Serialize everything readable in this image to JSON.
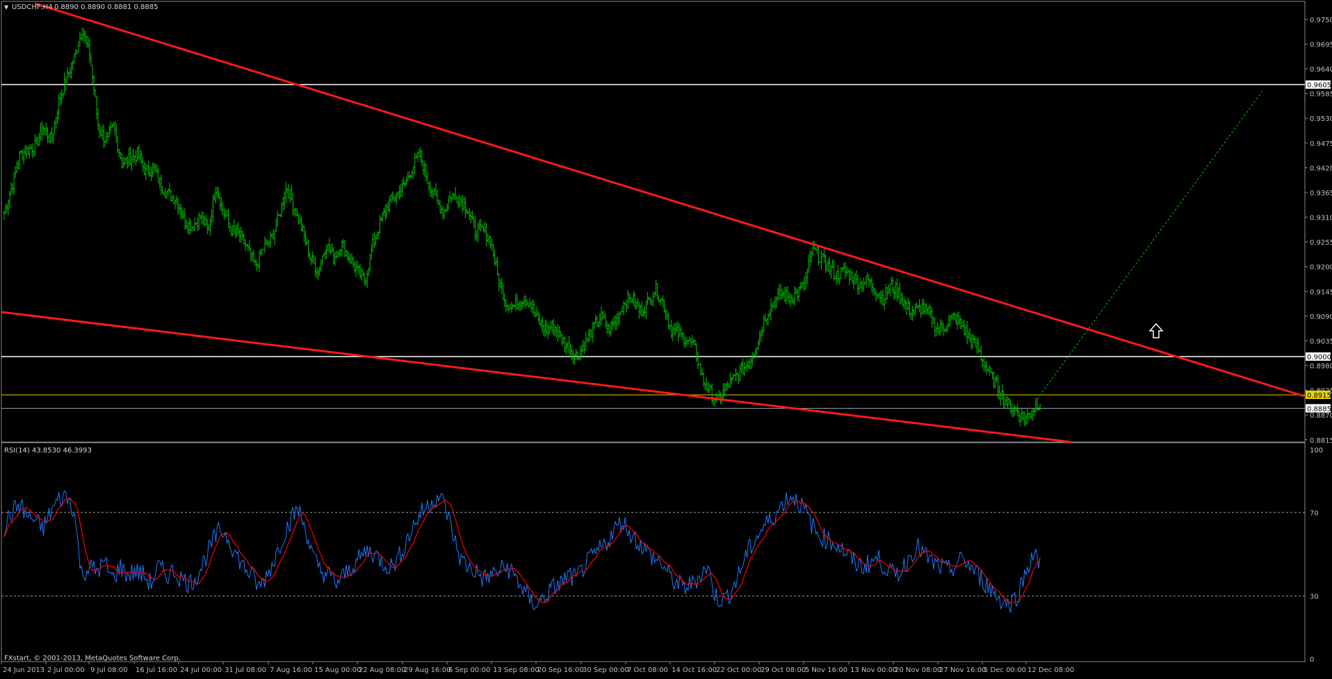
{
  "header": {
    "menu_glyph": "▼",
    "title": "USDCHF,H4",
    "ohlc": "0.8890 0.8890 0.8881 0.8885"
  },
  "rsi_header": "RSI(14) 43.8530 46.3993",
  "copyright": "FXstart, © 2001-2013, MetaQuotes Software Corp.",
  "colors": {
    "background": "#000000",
    "price_bars": "#00c800",
    "trendline": "#ff1a1a",
    "hline": "#ffffff",
    "yellow_level": "#e8d700",
    "bid_line": "#8fa0b0",
    "projection": "#00c800",
    "rsi_line": "#1e7bff",
    "rsi_signal": "#ff0000",
    "axis_text": "#c0c0c0"
  },
  "price_axis": {
    "ticks": [
      "0.9750",
      "0.9695",
      "0.9640",
      "0.9585",
      "0.9530",
      "0.9475",
      "0.9420",
      "0.9365",
      "0.9310",
      "0.9255",
      "0.9200",
      "0.9145",
      "0.9090",
      "0.9035",
      "0.8980",
      "0.8925",
      "0.8870",
      "0.8815"
    ],
    "min": 0.881,
    "max": 0.979
  },
  "time_axis": {
    "labels": [
      "24 Jun 2013",
      "2 Jul 00:00",
      "9 Jul 08:00",
      "16 Jul 16:00",
      "24 Jul 00:00",
      "31 Jul 08:00",
      "7 Aug 16:00",
      "15 Aug 00:00",
      "22 Aug 08:00",
      "29 Aug 16:00",
      "6 Sep 00:00",
      "13 Sep 08:00",
      "20 Sep 16:00",
      "30 Sep 00:00",
      "7 Oct 08:00",
      "14 Oct 16:00",
      "22 Oct 00:00",
      "29 Oct 08:00",
      "5 Nov 16:00",
      "13 Nov 00:00",
      "20 Nov 08:00",
      "27 Nov 16:00",
      "5 Dec 00:00",
      "12 Dec 08:00"
    ]
  },
  "rsi_axis": {
    "ticks": [
      "100",
      "70",
      "30",
      "0"
    ]
  },
  "levels": {
    "upper_label": "0.9605",
    "upper_value": 0.9605,
    "middle_label": "0.9000",
    "middle_value": 0.9,
    "yellow_label": "0.8915",
    "yellow_value": 0.8915,
    "bid_label": "0.8885",
    "bid_value": 0.8885
  },
  "annotations": {
    "up_arrow": "up-arrow-icon"
  },
  "chart_data": [
    {
      "type": "line",
      "series": [
        {
          "values": [
            0.932,
            0.938,
            0.945,
            0.946,
            0.947,
            0.951,
            0.948,
            0.957,
            0.962,
            0.967,
            0.973,
            0.966,
            0.951,
            0.948,
            0.951,
            0.943,
            0.944,
            0.945,
            0.941,
            0.942,
            0.938,
            0.936,
            0.935,
            0.93,
            0.929,
            0.931,
            0.928,
            0.938,
            0.932,
            0.928,
            0.927,
            0.924,
            0.92,
            0.924,
            0.926,
            0.931,
            0.938,
            0.933,
            0.928,
            0.922,
            0.919,
            0.925,
            0.922,
            0.925,
            0.922,
            0.919,
            0.917,
            0.925,
            0.93,
            0.934,
            0.936,
            0.938,
            0.942,
            0.945,
            0.939,
            0.935,
            0.932,
            0.936,
            0.935,
            0.933,
            0.928,
            0.928,
            0.926,
            0.917,
            0.912,
            0.911,
            0.913,
            0.912,
            0.908,
            0.906,
            0.907,
            0.904,
            0.902,
            0.9,
            0.903,
            0.906,
            0.909,
            0.906,
            0.908,
            0.912,
            0.913,
            0.91,
            0.912,
            0.915,
            0.912,
            0.906,
            0.905,
            0.904,
            0.902,
            0.895,
            0.892,
            0.89,
            0.893,
            0.895,
            0.897,
            0.899,
            0.903,
            0.909,
            0.912,
            0.914,
            0.913,
            0.914,
            0.916,
            0.924,
            0.922,
            0.92,
            0.918,
            0.919,
            0.918,
            0.916,
            0.917,
            0.915,
            0.913,
            0.916,
            0.914,
            0.911,
            0.91,
            0.911,
            0.909,
            0.906,
            0.907,
            0.909,
            0.907,
            0.904,
            0.902,
            0.898,
            0.895,
            0.892,
            0.889,
            0.888,
            0.886,
            0.888,
            0.89
          ],
          "color": "#00c800"
        }
      ],
      "levels": [
        0.9605,
        0.9,
        0.8915,
        0.8885
      ],
      "ylim": [
        0.881,
        0.979
      ],
      "trendlines": [
        {
          "from": [
            "24 Jun 2013",
            0.979
          ],
          "to": [
            "right edge",
            0.8915
          ]
        },
        {
          "from": [
            "24 Jun 2013",
            0.9093
          ],
          "to": [
            "12 Dec 08:00",
            0.882
          ]
        }
      ]
    },
    {
      "type": "line",
      "series": [
        {
          "values": [
            63,
            70,
            74,
            68,
            66,
            62,
            70,
            76,
            78,
            72,
            40,
            44,
            42,
            46,
            38,
            44,
            40,
            42,
            40,
            36,
            44,
            40,
            42,
            38,
            36,
            40,
            48,
            56,
            62,
            58,
            50,
            44,
            40,
            34,
            40,
            48,
            58,
            66,
            72,
            62,
            48,
            42,
            40,
            36,
            40,
            44,
            48,
            52,
            50,
            46,
            44,
            48,
            56,
            64,
            70,
            74,
            78,
            74,
            60,
            48,
            44,
            42,
            38,
            40,
            42,
            44,
            40,
            34,
            28,
            26,
            30,
            34,
            36,
            40,
            38,
            44,
            48,
            52,
            56,
            62,
            66,
            60,
            56,
            52,
            48,
            46,
            40,
            36,
            34,
            36,
            40,
            44,
            30,
            28,
            32,
            40,
            50,
            56,
            62,
            66,
            70,
            76,
            78,
            74,
            68,
            60,
            58,
            56,
            54,
            50,
            46,
            44,
            46,
            48,
            44,
            40,
            42,
            48,
            54,
            50,
            46,
            44,
            42,
            44,
            48,
            44,
            40,
            36,
            32,
            28,
            26,
            30,
            40,
            50,
            46
          ],
          "color": "#1e7bff"
        }
      ],
      "ylim": [
        0,
        100
      ],
      "levels": [
        30,
        70
      ]
    }
  ]
}
